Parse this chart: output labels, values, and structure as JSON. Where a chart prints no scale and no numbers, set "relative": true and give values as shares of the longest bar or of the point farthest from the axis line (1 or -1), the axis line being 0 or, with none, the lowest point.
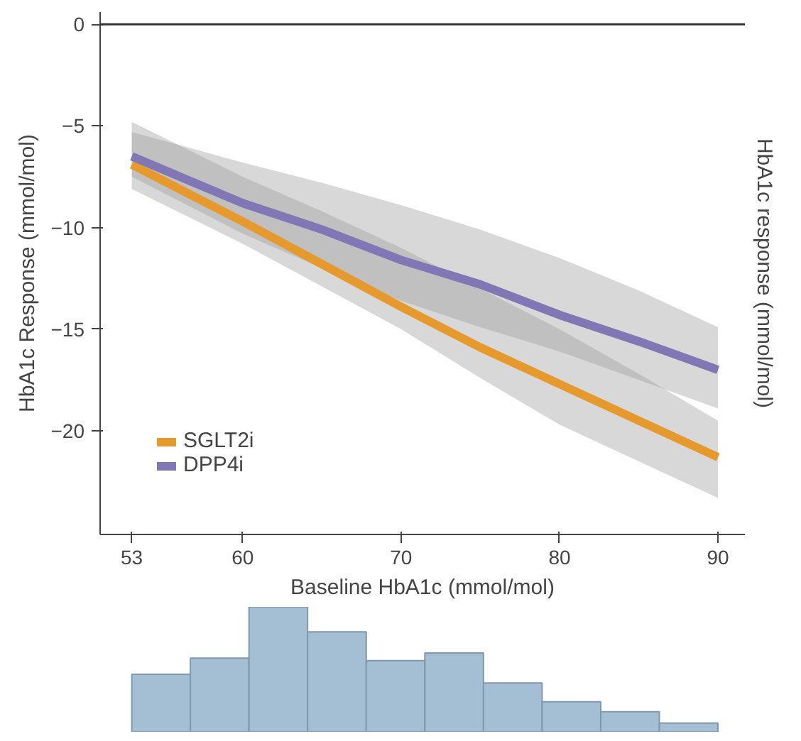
{
  "chart_data": [
    {
      "type": "line",
      "xlabel": "Baseline HbA1c (mmol/mol)",
      "ylabel": "HbA1c Response (mmol/mol)",
      "y2label": "HbA1c response (mmol/mol)",
      "x": [
        53,
        60,
        65,
        70,
        75,
        80,
        85,
        90
      ],
      "series": [
        {
          "name": "SGLT2i",
          "color": "#e69a2e",
          "values": [
            -6.9,
            -9.7,
            -11.8,
            -13.9,
            -15.9,
            -17.7,
            -19.5,
            -21.3
          ],
          "lower": [
            -8.1,
            -10.8,
            -12.9,
            -15.0,
            -17.4,
            -19.7,
            -21.5,
            -23.3
          ],
          "upper": [
            -4.8,
            -7.5,
            -9.2,
            -11.0,
            -13.0,
            -15.0,
            -17.2,
            -19.5
          ]
        },
        {
          "name": "DPP4i",
          "color": "#8277b5",
          "values": [
            -6.5,
            -8.8,
            -10.1,
            -11.6,
            -12.8,
            -14.3,
            -15.6,
            -17.0
          ],
          "lower": [
            -7.5,
            -10.3,
            -12.0,
            -13.6,
            -14.9,
            -16.1,
            -17.5,
            -18.9
          ],
          "upper": [
            -5.3,
            -6.8,
            -7.8,
            -8.9,
            -10.1,
            -11.5,
            -13.1,
            -14.9
          ]
        }
      ],
      "xlim": [
        51,
        91.7
      ],
      "ylim": [
        -25.1,
        0.6
      ],
      "xticks": [
        53,
        60,
        70,
        80,
        90
      ],
      "yticks": [
        0,
        -5,
        -10,
        -15,
        -20
      ],
      "ref_lines": [
        {
          "axis": "y",
          "value": 0,
          "color": "#333333"
        }
      ],
      "legend": "bottom left",
      "grid": false,
      "line_style": "solid"
    },
    {
      "type": "bar",
      "relative": true,
      "color": "#a4bed4",
      "categories": [
        null,
        null,
        null,
        null,
        null,
        null,
        null,
        null,
        null,
        null
      ],
      "values": [
        0.46,
        0.59,
        1,
        0.8,
        0.57,
        0.63,
        0.39,
        0.24,
        0.16,
        0.07
      ]
    }
  ]
}
